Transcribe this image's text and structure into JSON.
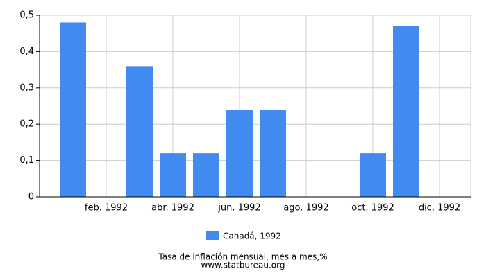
{
  "chart_data": {
    "type": "bar",
    "categories": [
      null,
      "feb. 1992",
      null,
      "abr. 1992",
      null,
      "jun. 1992",
      null,
      "ago. 1992",
      null,
      "oct. 1992",
      null,
      "dic. 1992"
    ],
    "series": [
      {
        "name": "Canadá, 1992",
        "color": "#418bf0",
        "values": [
          0.48,
          0,
          0.36,
          0.12,
          0.12,
          0.24,
          0.24,
          0,
          0,
          0.12,
          0.47,
          0
        ]
      }
    ],
    "ylim": [
      0,
      0.5
    ],
    "yticks": [
      0,
      {
        "value": 0.1,
        "label": "0,1"
      },
      {
        "value": 0.2,
        "label": "0,2"
      },
      {
        "value": 0.3,
        "label": "0,3"
      },
      {
        "value": 0.4,
        "label": "0,4"
      },
      {
        "value": 0.5,
        "label": "0,5"
      }
    ],
    "grid": true,
    "caption": "Tasa de inflación mensual, mes a mes,%",
    "source": "www.statbureau.org"
  }
}
